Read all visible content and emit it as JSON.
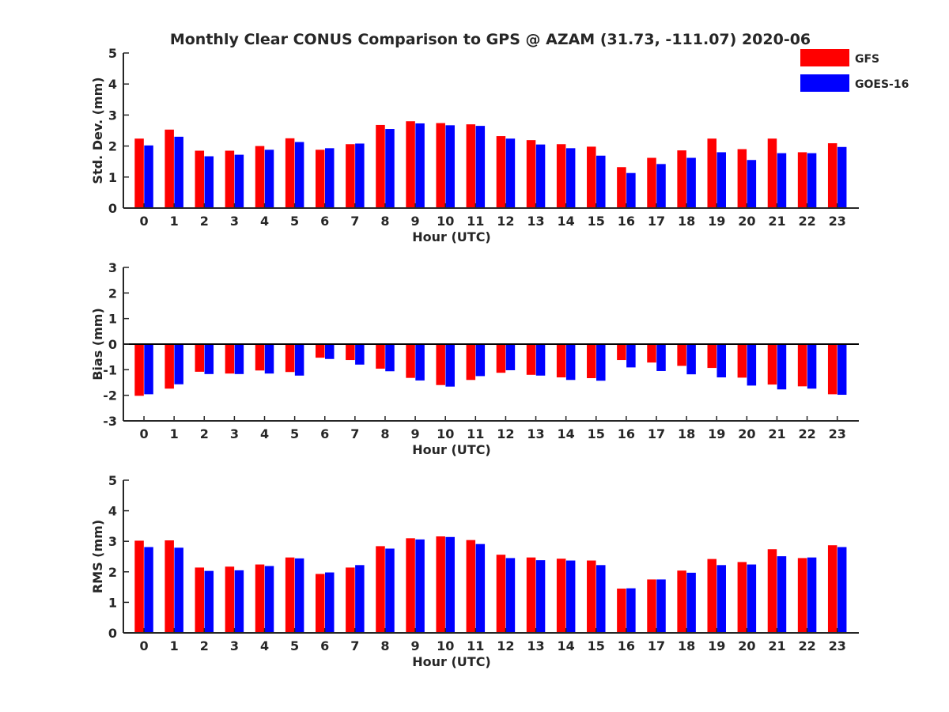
{
  "title": "Monthly Clear CONUS Comparison to GPS @ AZAM (31.73, -111.07) 2020-06",
  "legend": {
    "placement": "top-right",
    "entries": [
      {
        "label": "GFS",
        "color": "#ff0000"
      },
      {
        "label": "GOES-16",
        "color": "#0000ff"
      }
    ]
  },
  "chart_data": [
    {
      "type": "bar",
      "ylabel": "Std. Dev. (mm)",
      "xlabel": "Hour (UTC)",
      "ylim": [
        0,
        5
      ],
      "yticks": [
        0,
        1,
        2,
        3,
        4,
        5
      ],
      "categories": [
        "0",
        "1",
        "2",
        "3",
        "4",
        "5",
        "6",
        "7",
        "8",
        "9",
        "10",
        "11",
        "12",
        "13",
        "14",
        "15",
        "16",
        "17",
        "18",
        "19",
        "20",
        "21",
        "22",
        "23"
      ],
      "series": [
        {
          "name": "GFS",
          "color": "#ff0000",
          "values": [
            2.24,
            2.53,
            1.85,
            1.85,
            2.0,
            2.25,
            1.88,
            2.06,
            2.68,
            2.8,
            2.74,
            2.7,
            2.32,
            2.19,
            2.06,
            1.98,
            1.32,
            1.62,
            1.86,
            2.24,
            1.9,
            2.24,
            1.8,
            2.09
          ]
        },
        {
          "name": "GOES-16",
          "color": "#0000ff",
          "values": [
            2.02,
            2.3,
            1.67,
            1.72,
            1.88,
            2.13,
            1.93,
            2.08,
            2.55,
            2.73,
            2.67,
            2.65,
            2.24,
            2.05,
            1.93,
            1.69,
            1.13,
            1.42,
            1.62,
            1.8,
            1.55,
            1.77,
            1.77,
            1.97
          ]
        }
      ]
    },
    {
      "type": "bar",
      "ylabel": "Bias (mm)",
      "xlabel": "Hour (UTC)",
      "ylim": [
        -3,
        3
      ],
      "yticks": [
        -3,
        -2,
        -1,
        0,
        1,
        2,
        3
      ],
      "categories": [
        "0",
        "1",
        "2",
        "3",
        "4",
        "5",
        "6",
        "7",
        "8",
        "9",
        "10",
        "11",
        "12",
        "13",
        "14",
        "15",
        "16",
        "17",
        "18",
        "19",
        "20",
        "21",
        "22",
        "23"
      ],
      "series": [
        {
          "name": "GFS",
          "color": "#ff0000",
          "values": [
            -2.02,
            -1.74,
            -1.08,
            -1.15,
            -1.03,
            -1.09,
            -0.53,
            -0.62,
            -0.96,
            -1.32,
            -1.6,
            -1.4,
            -1.12,
            -1.2,
            -1.3,
            -1.33,
            -0.62,
            -0.72,
            -0.85,
            -0.93,
            -1.31,
            -1.58,
            -1.65,
            -1.96
          ]
        },
        {
          "name": "GOES-16",
          "color": "#0000ff",
          "values": [
            -1.96,
            -1.57,
            -1.17,
            -1.17,
            -1.15,
            -1.23,
            -0.58,
            -0.8,
            -1.06,
            -1.42,
            -1.66,
            -1.25,
            -1.02,
            -1.23,
            -1.4,
            -1.43,
            -0.91,
            -1.05,
            -1.18,
            -1.3,
            -1.62,
            -1.77,
            -1.74,
            -1.98
          ]
        }
      ]
    },
    {
      "type": "bar",
      "ylabel": "RMS (mm)",
      "xlabel": "Hour (UTC)",
      "ylim": [
        0,
        5
      ],
      "yticks": [
        0,
        1,
        2,
        3,
        4,
        5
      ],
      "categories": [
        "0",
        "1",
        "2",
        "3",
        "4",
        "5",
        "6",
        "7",
        "8",
        "9",
        "10",
        "11",
        "12",
        "13",
        "14",
        "15",
        "16",
        "17",
        "18",
        "19",
        "20",
        "21",
        "22",
        "23"
      ],
      "series": [
        {
          "name": "GFS",
          "color": "#ff0000",
          "values": [
            3.02,
            3.03,
            2.14,
            2.17,
            2.24,
            2.47,
            1.93,
            2.14,
            2.84,
            3.1,
            3.16,
            3.04,
            2.56,
            2.47,
            2.43,
            2.37,
            1.45,
            1.75,
            2.04,
            2.42,
            2.32,
            2.74,
            2.45,
            2.87
          ]
        },
        {
          "name": "GOES-16",
          "color": "#0000ff",
          "values": [
            2.81,
            2.79,
            2.03,
            2.05,
            2.19,
            2.44,
            1.98,
            2.22,
            2.76,
            3.06,
            3.14,
            2.91,
            2.45,
            2.38,
            2.37,
            2.22,
            1.46,
            1.75,
            1.97,
            2.22,
            2.24,
            2.51,
            2.47,
            2.81
          ]
        }
      ]
    }
  ]
}
